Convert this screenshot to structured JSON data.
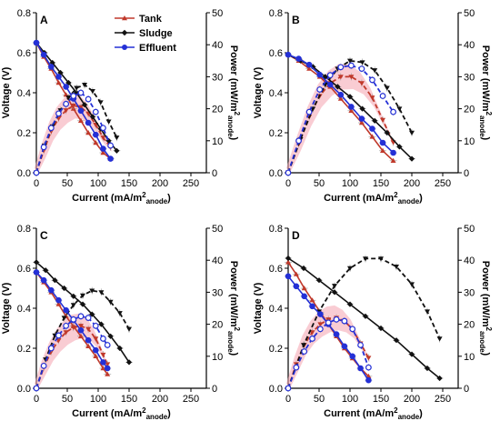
{
  "series_styles": [
    {
      "key": "tank",
      "color": "#c0392b"
    },
    {
      "key": "sludge",
      "color": "#111111"
    },
    {
      "key": "effluent",
      "color": "#2430d6"
    }
  ],
  "power_fill_color": "#f4a3ae",
  "legend": {
    "entries": [
      {
        "key": "tank",
        "label": "Tank"
      },
      {
        "key": "sludge",
        "label": "Sludge"
      },
      {
        "key": "effluent",
        "label": "Effluent"
      }
    ]
  },
  "chart_data": [
    {
      "type": "line",
      "panel": "A",
      "xlabel_main": "Current (mA/m",
      "xlabel_sup": "2",
      "xlabel_sub": "anode",
      "xlabel_end": ")",
      "ylabel_left": "Voltage (V)",
      "ylabel_right_main": "Power (mW/m",
      "ylabel_right_sup": "2",
      "ylabel_right_sub": "anode",
      "ylabel_right_end": ")",
      "xlim": [
        0,
        275
      ],
      "xticks": [
        "0",
        "50",
        "100",
        "150",
        "200",
        "250"
      ],
      "ylim_left": [
        0,
        0.8
      ],
      "yticks_left": [
        "0.0",
        "0.2",
        "0.4",
        "0.6",
        "0.8"
      ],
      "ylim_right": [
        0,
        50
      ],
      "yticks_right": [
        "0",
        "10",
        "20",
        "30",
        "40",
        "50"
      ],
      "series": [
        {
          "key": "tank",
          "polarization": {
            "x": [
              0,
              12,
              24,
              36,
              48,
              60,
              72,
              84,
              96,
              108,
              120
            ],
            "y": [
              0.65,
              0.58,
              0.52,
              0.45,
              0.39,
              0.32,
              0.26,
              0.2,
              0.15,
              0.1,
              0.07
            ]
          },
          "power": {
            "x": [
              0,
              12,
              24,
              36,
              48,
              60,
              72,
              84,
              96,
              108,
              120
            ],
            "y": [
              0,
              7,
              13,
              17,
              19.5,
              21,
              20.5,
              18.5,
              15,
              11,
              8
            ]
          }
        },
        {
          "key": "sludge",
          "polarization": {
            "x": [
              0,
              13,
              26,
              39,
              52,
              65,
              78,
              91,
              104,
              117,
              130
            ],
            "y": [
              0.65,
              0.6,
              0.55,
              0.5,
              0.45,
              0.4,
              0.34,
              0.28,
              0.22,
              0.16,
              0.11
            ]
          },
          "power": {
            "x": [
              0,
              13,
              26,
              39,
              52,
              65,
              78,
              91,
              104,
              117,
              130
            ],
            "y": [
              0,
              8.5,
              14.5,
              19.5,
              23.5,
              26.5,
              27.5,
              25.5,
              22,
              16,
              11
            ]
          }
        },
        {
          "key": "effluent",
          "polarization": {
            "x": [
              0,
              12,
              24,
              36,
              48,
              60,
              72,
              84,
              96,
              108,
              120
            ],
            "y": [
              0.65,
              0.59,
              0.53,
              0.48,
              0.43,
              0.37,
              0.31,
              0.25,
              0.19,
              0.12,
              0.07
            ]
          },
          "power": {
            "x": [
              0,
              12,
              24,
              36,
              48,
              60,
              72,
              84,
              96,
              108,
              120
            ],
            "y": [
              0,
              8,
              14,
              18.5,
              21.5,
              24,
              25,
              23,
              19,
              14,
              8.5
            ]
          }
        }
      ]
    },
    {
      "type": "line",
      "panel": "B",
      "xlabel_main": "Current (mA/m",
      "xlabel_sup": "2",
      "xlabel_sub": "anode",
      "xlabel_end": ")",
      "ylabel_left": "Voltage (V)",
      "ylabel_right_main": "Power (mW/m",
      "ylabel_right_sup": "2",
      "ylabel_right_sub": "anode",
      "ylabel_right_end": ")",
      "xlim": [
        0,
        275
      ],
      "xticks": [
        "0",
        "50",
        "100",
        "150",
        "200",
        "250"
      ],
      "ylim_left": [
        0,
        0.8
      ],
      "yticks_left": [
        "0.0",
        "0.2",
        "0.4",
        "0.6",
        "0.8"
      ],
      "ylim_right": [
        0,
        50
      ],
      "yticks_right": [
        "0",
        "10",
        "20",
        "30",
        "40",
        "50"
      ],
      "series": [
        {
          "key": "tank",
          "polarization": {
            "x": [
              0,
              17,
              34,
              51,
              68,
              85,
              102,
              119,
              136,
              153,
              170
            ],
            "y": [
              0.59,
              0.56,
              0.52,
              0.48,
              0.43,
              0.37,
              0.31,
              0.25,
              0.18,
              0.11,
              0.06
            ]
          },
          "power": {
            "x": [
              0,
              17,
              34,
              51,
              68,
              85,
              102,
              119,
              136,
              153,
              170
            ],
            "y": [
              0,
              9,
              17.5,
              24,
              28,
              30,
              30,
              28,
              23.5,
              16.5,
              9.5
            ]
          }
        },
        {
          "key": "sludge",
          "polarization": {
            "x": [
              0,
              20,
              40,
              60,
              80,
              100,
              120,
              140,
              160,
              180,
              200
            ],
            "y": [
              0.59,
              0.56,
              0.53,
              0.48,
              0.43,
              0.38,
              0.32,
              0.26,
              0.2,
              0.13,
              0.07
            ]
          },
          "power": {
            "x": [
              0,
              20,
              40,
              60,
              80,
              100,
              120,
              140,
              160,
              180,
              200
            ],
            "y": [
              0,
              10.5,
              20,
              27.5,
              32.5,
              35,
              34.5,
              32,
              26.5,
              20,
              12.5
            ]
          }
        },
        {
          "key": "effluent",
          "polarization": {
            "x": [
              0,
              17,
              34,
              51,
              68,
              85,
              102,
              119,
              136,
              153,
              170
            ],
            "y": [
              0.59,
              0.57,
              0.54,
              0.49,
              0.44,
              0.39,
              0.33,
              0.27,
              0.22,
              0.15,
              0.1
            ]
          },
          "power": {
            "x": [
              0,
              17,
              34,
              51,
              68,
              85,
              102,
              119,
              136,
              153,
              170
            ],
            "y": [
              0,
              10,
              19,
              26,
              30.5,
              33,
              33.5,
              32.5,
              29,
              24,
              19
            ]
          }
        }
      ]
    },
    {
      "type": "line",
      "panel": "C",
      "xlabel_main": "Current (mA/m",
      "xlabel_sup": "2",
      "xlabel_sub": "anode",
      "xlabel_end": ")",
      "ylabel_left": "Voltage (V)",
      "ylabel_right_main": "Power (mW/m",
      "ylabel_right_sup": "2",
      "ylabel_right_sub": "anode",
      "ylabel_right_end": ")",
      "xlim": [
        0,
        275
      ],
      "xticks": [
        "0",
        "50",
        "100",
        "150",
        "200",
        "250"
      ],
      "ylim_left": [
        0,
        0.8
      ],
      "yticks_left": [
        "0.0",
        "0.2",
        "0.4",
        "0.6",
        "0.8"
      ],
      "ylim_right": [
        0,
        50
      ],
      "yticks_right": [
        "0",
        "10",
        "20",
        "30",
        "40",
        "50"
      ],
      "series": [
        {
          "key": "tank",
          "polarization": {
            "x": [
              0,
              12,
              24,
              36,
              48,
              60,
              72,
              84,
              96,
              108,
              115
            ],
            "y": [
              0.58,
              0.53,
              0.48,
              0.42,
              0.36,
              0.31,
              0.26,
              0.21,
              0.16,
              0.1,
              0.07
            ]
          },
          "power": {
            "x": [
              0,
              12,
              24,
              36,
              48,
              60,
              72,
              84,
              96,
              108,
              115
            ],
            "y": [
              0,
              6.5,
              11.5,
              15,
              17.5,
              19,
              19.5,
              18.5,
              15.5,
              10.5,
              7.5
            ]
          }
        },
        {
          "key": "sludge",
          "polarization": {
            "x": [
              0,
              15,
              30,
              45,
              60,
              75,
              90,
              105,
              120,
              135,
              150
            ],
            "y": [
              0.63,
              0.59,
              0.54,
              0.5,
              0.46,
              0.42,
              0.37,
              0.32,
              0.26,
              0.2,
              0.13
            ]
          },
          "power": {
            "x": [
              0,
              15,
              30,
              45,
              60,
              75,
              90,
              105,
              120,
              135,
              150
            ],
            "y": [
              0,
              9,
              16.5,
              22,
              26,
              29,
              30.5,
              30,
              27,
              23.5,
              18.5
            ]
          }
        },
        {
          "key": "effluent",
          "polarization": {
            "x": [
              0,
              12,
              24,
              36,
              48,
              60,
              72,
              84,
              96,
              108,
              115
            ],
            "y": [
              0.58,
              0.54,
              0.49,
              0.44,
              0.39,
              0.34,
              0.29,
              0.24,
              0.19,
              0.13,
              0.1
            ]
          },
          "power": {
            "x": [
              0,
              12,
              24,
              36,
              48,
              60,
              72,
              84,
              96,
              108,
              115
            ],
            "y": [
              0,
              7,
              12.5,
              16.5,
              19.5,
              21.5,
              22.5,
              22,
              19.5,
              15.5,
              13.5
            ]
          }
        }
      ]
    },
    {
      "type": "line",
      "panel": "D",
      "xlabel_main": "Current (mA/m",
      "xlabel_sup": "2",
      "xlabel_sub": "anode",
      "xlabel_end": ")",
      "ylabel_left": "Voltage (V)",
      "ylabel_right_main": "Power (mW/m",
      "ylabel_right_sup": "2",
      "ylabel_right_sub": "anode",
      "ylabel_right_end": ")",
      "xlim": [
        0,
        275
      ],
      "xticks": [
        "0",
        "50",
        "100",
        "150",
        "200",
        "250"
      ],
      "ylim_left": [
        0,
        0.8
      ],
      "yticks_left": [
        "0.0",
        "0.2",
        "0.4",
        "0.6",
        "0.8"
      ],
      "ylim_right": [
        0,
        50
      ],
      "yticks_right": [
        "0",
        "10",
        "20",
        "30",
        "40",
        "50"
      ],
      "series": [
        {
          "key": "tank",
          "polarization": {
            "x": [
              0,
              13,
              26,
              39,
              52,
              65,
              78,
              91,
              104,
              117,
              130
            ],
            "y": [
              0.63,
              0.57,
              0.5,
              0.44,
              0.38,
              0.32,
              0.26,
              0.2,
              0.15,
              0.1,
              0.06
            ]
          },
          "power": {
            "x": [
              0,
              13,
              26,
              39,
              52,
              65,
              78,
              91,
              104,
              117,
              130
            ],
            "y": [
              0,
              7.5,
              13.5,
              17.5,
              20,
              21.5,
              22,
              21,
              18.5,
              14,
              9.5
            ]
          }
        },
        {
          "key": "sludge",
          "polarization": {
            "x": [
              0,
              25,
              50,
              75,
              100,
              125,
              150,
              175,
              200,
              225,
              245
            ],
            "y": [
              0.65,
              0.6,
              0.54,
              0.48,
              0.42,
              0.36,
              0.3,
              0.24,
              0.17,
              0.1,
              0.05
            ]
          },
          "power": {
            "x": [
              0,
              25,
              50,
              75,
              100,
              125,
              150,
              175,
              200,
              225,
              245
            ],
            "y": [
              0,
              13.5,
              24,
              32,
              37.5,
              40.5,
              40.5,
              38,
              32.5,
              24,
              15.5
            ]
          }
        },
        {
          "key": "effluent",
          "polarization": {
            "x": [
              0,
              13,
              26,
              39,
              52,
              65,
              78,
              91,
              104,
              117,
              130
            ],
            "y": [
              0.56,
              0.51,
              0.46,
              0.41,
              0.37,
              0.32,
              0.27,
              0.21,
              0.16,
              0.1,
              0.04
            ]
          },
          "power": {
            "x": [
              0,
              13,
              26,
              39,
              52,
              65,
              78,
              91,
              104,
              117,
              130
            ],
            "y": [
              0,
              6.5,
              11.5,
              15.5,
              18.5,
              20.5,
              21.5,
              21,
              18.5,
              13.5,
              6.5
            ]
          }
        }
      ]
    }
  ]
}
